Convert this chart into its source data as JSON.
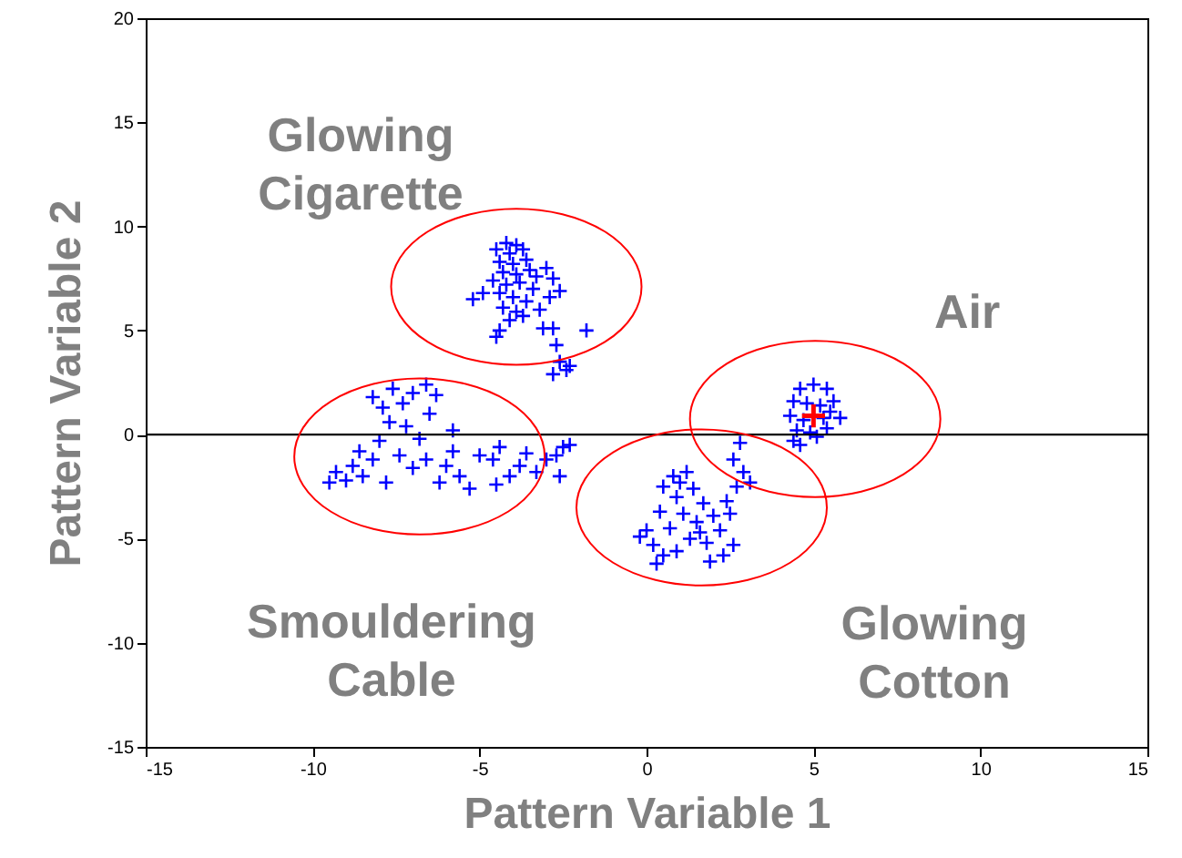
{
  "chart_data": {
    "type": "scatter",
    "xlabel": "Pattern Variable 1",
    "ylabel": "Pattern Variable  2",
    "xlim": [
      -15,
      15
    ],
    "ylim": [
      -15,
      20
    ],
    "xticks": [
      -15,
      -10,
      -5,
      0,
      5,
      10,
      15
    ],
    "yticks": [
      -15,
      -10,
      -5,
      0,
      5,
      10,
      15,
      20
    ],
    "grid": false,
    "marker": "cross",
    "series": [
      {
        "color": "#0000ff",
        "x": [
          -4.2,
          -3.9,
          -4.1,
          -3.7,
          -4.4,
          -4.0,
          -3.6,
          -4.3,
          -3.9,
          -4.6,
          -4.2,
          -3.8,
          -3.3,
          -3.0,
          -2.8,
          -2.6,
          -3.4,
          -4.4,
          -4.0,
          -3.6,
          -5.2,
          -4.9,
          -4.3,
          -3.9,
          -3.2,
          -4.1,
          -4.4,
          -4.5,
          -3.1,
          -2.8,
          -1.8,
          -2.7,
          -2.6,
          -2.8,
          -2.4,
          -2.3,
          -3.5,
          -4.5,
          -2.9,
          -3.7,
          -9.5,
          -9.3,
          -9.0,
          -8.8,
          -8.5,
          -8.6,
          -8.2,
          -8.0,
          -8.2,
          -7.9,
          -7.6,
          -7.3,
          -7.0,
          -6.6,
          -6.3,
          -6.5,
          -7.7,
          -7.2,
          -6.8,
          -7.4,
          -7.0,
          -6.6,
          -6.2,
          -6.0,
          -5.8,
          -5.6,
          -5.3,
          -5.0,
          -4.6,
          -4.4,
          -4.1,
          -3.8,
          -3.6,
          -3.3,
          -3.0,
          -2.7,
          -2.5,
          -2.3,
          -2.6,
          -4.5,
          -7.8,
          -5.8,
          0.5,
          0.8,
          1.2,
          0.9,
          1.4,
          1.7,
          1.1,
          1.5,
          2.0,
          2.4,
          2.7,
          2.9,
          2.6,
          2.8,
          3.1,
          2.2,
          1.8,
          2.3,
          1.9,
          1.3,
          0.7,
          0.2,
          0.5,
          0.3,
          0.9,
          0.0,
          -0.2,
          0.4,
          2.6,
          1.6,
          2.5,
          1.0,
          4.6,
          5.0,
          5.4,
          4.4,
          4.8,
          5.2,
          5.6,
          4.3,
          4.7,
          5.3,
          5.8,
          4.5,
          4.9,
          5.4,
          4.4,
          4.6,
          5.1,
          5.5
        ],
        "values": [
          9.2,
          9.1,
          8.7,
          8.9,
          8.3,
          8.2,
          8.4,
          7.8,
          7.7,
          7.4,
          7.2,
          7.3,
          7.6,
          8.0,
          7.5,
          6.9,
          7.0,
          6.8,
          6.6,
          6.4,
          6.5,
          6.8,
          6.1,
          5.9,
          6.0,
          5.5,
          5.0,
          4.7,
          5.1,
          5.1,
          5.0,
          4.3,
          3.5,
          2.9,
          3.1,
          3.3,
          7.9,
          8.9,
          6.6,
          5.7,
          -2.3,
          -1.8,
          -2.2,
          -1.5,
          -2.0,
          -0.8,
          -1.2,
          -0.3,
          1.8,
          1.3,
          2.2,
          1.5,
          2.0,
          2.4,
          1.9,
          1.0,
          0.6,
          0.4,
          -0.2,
          -1.0,
          -1.6,
          -1.2,
          -2.3,
          -1.5,
          -0.8,
          -2.0,
          -2.6,
          -1.0,
          -1.2,
          -0.6,
          -2.0,
          -1.5,
          -0.9,
          -1.8,
          -1.2,
          -1.0,
          -0.6,
          -0.5,
          -2.0,
          -2.4,
          -2.3,
          0.2,
          -2.5,
          -2.0,
          -1.8,
          -3.0,
          -2.6,
          -3.3,
          -3.8,
          -4.2,
          -3.9,
          -3.2,
          -2.5,
          -1.8,
          -1.2,
          -0.4,
          -2.3,
          -4.6,
          -5.2,
          -5.8,
          -6.1,
          -5.0,
          -4.5,
          -5.3,
          -5.8,
          -6.2,
          -5.6,
          -4.6,
          -4.9,
          -3.7,
          -5.3,
          -4.7,
          -3.8,
          -2.3,
          2.2,
          2.4,
          2.2,
          1.6,
          1.5,
          1.4,
          1.6,
          0.9,
          0.7,
          0.8,
          0.8,
          0.2,
          0.1,
          0.3,
          -0.3,
          -0.5,
          -0.1,
          1.1
        ]
      },
      {
        "color": "#ff0000",
        "x": [
          5.0
        ],
        "values": [
          0.9
        ]
      }
    ],
    "ref_lines": [
      {
        "axis": "y",
        "value": 0,
        "color": "#000000"
      }
    ],
    "annotations": [
      "Glowing\nCigarette",
      "Air",
      "Smouldering\nCable",
      "Glowing\nCotton"
    ]
  }
}
